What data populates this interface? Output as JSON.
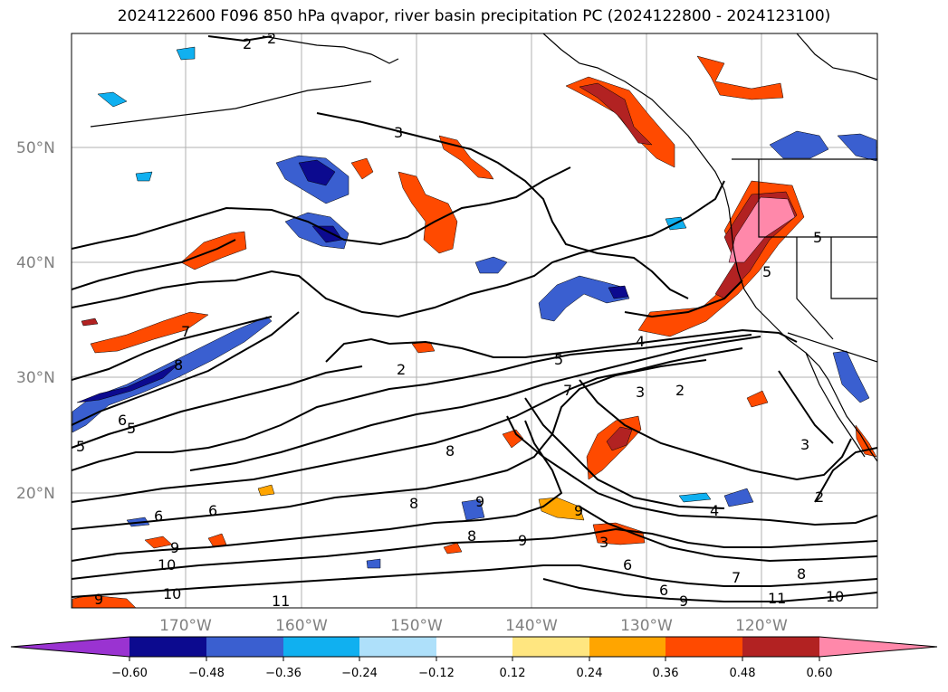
{
  "title": "2024122600 F096 850 hPa qvapor, river basin precipitation PC (2024122800 - 2024123100)",
  "lat_labels": [
    "50°N",
    "40°N",
    "30°N",
    "20°N"
  ],
  "lon_labels": [
    "170°W",
    "160°W",
    "150°W",
    "140°W",
    "130°W",
    "120°W"
  ],
  "colorbar": {
    "ticks": [
      "−0.60",
      "−0.48",
      "−0.36",
      "−0.24",
      "−0.12",
      "0.12",
      "0.24",
      "0.36",
      "0.48",
      "0.60"
    ],
    "colors": [
      "#9a33d1",
      "#0c0a8f",
      "#3a5fd0",
      "#10b0f0",
      "#aee0fa",
      "#ffffff",
      "#ffe680",
      "#ffa500",
      "#ff4a00",
      "#b22222",
      "#ff88aa"
    ]
  },
  "contour_labels": [
    "2",
    "2",
    "3",
    "5",
    "4",
    "5",
    "5",
    "2",
    "8",
    "5",
    "6",
    "5",
    "6",
    "7",
    "7",
    "3",
    "2",
    "3",
    "9",
    "8",
    "8",
    "9",
    "9",
    "8",
    "6",
    "10",
    "10",
    "11",
    "9",
    "4",
    "6",
    "9",
    "7",
    "8",
    "11",
    "10",
    "2",
    "3",
    "6",
    "9"
  ]
}
